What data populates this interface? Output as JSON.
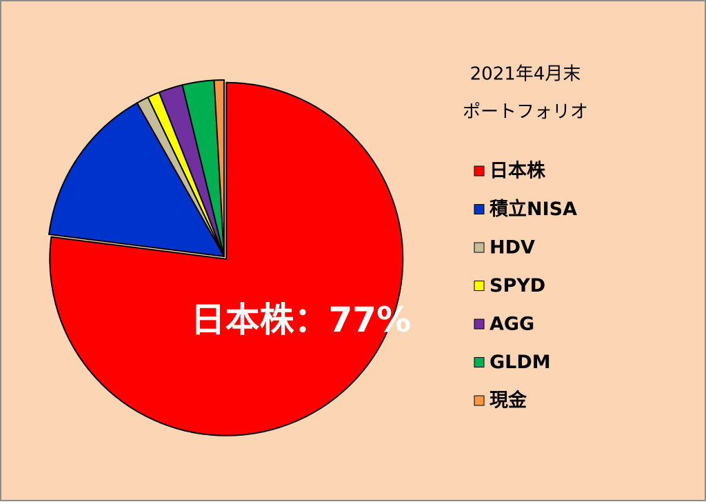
{
  "chart_data": {
    "type": "pie",
    "title": "2021年4月末",
    "subtitle": "ポートフォリオ",
    "categories": [
      "日本株",
      "積立NISA",
      "HDV",
      "SPYD",
      "AGG",
      "GLDM",
      "現金"
    ],
    "values": [
      77,
      14.8,
      1.1,
      1.1,
      2.2,
      2.9,
      0.9
    ],
    "value_labels": [
      "日本株：77%",
      null,
      null,
      null,
      null,
      null,
      null
    ],
    "colors": [
      "#ff0000",
      "#0033cc",
      "#c4bd97",
      "#ffff00",
      "#7030a0",
      "#00b050",
      "#f79646"
    ],
    "legend": "right"
  }
}
